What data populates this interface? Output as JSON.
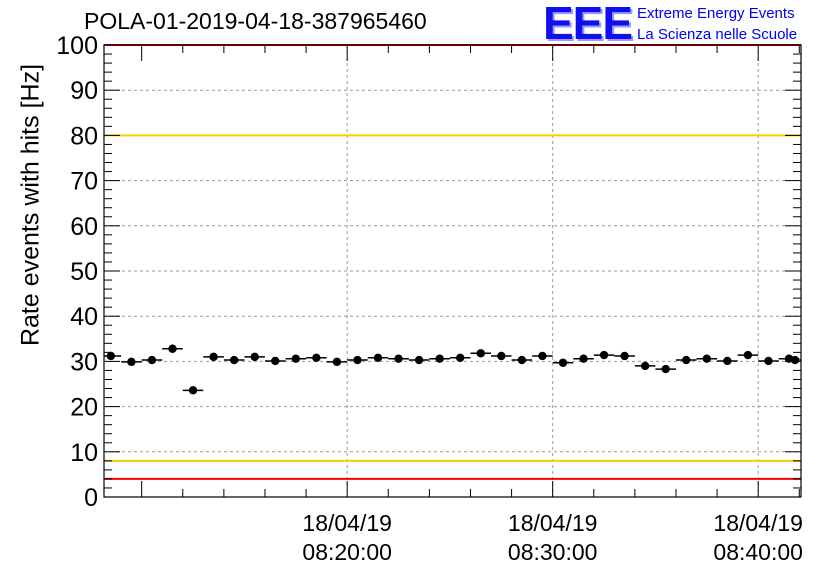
{
  "header": {
    "title": "POLA-01-2019-04-18-387965460",
    "logo_letters": "EEE",
    "logo_line1": "Extreme Energy Events",
    "logo_line2": "La Scienza nelle Scuole"
  },
  "chart_data": {
    "type": "scatter",
    "title": "POLA-01-2019-04-18-387965460",
    "ylabel": "Rate events with hits [Hz]",
    "xlabel": "",
    "ylim": [
      0,
      100
    ],
    "yticks": [
      0,
      10,
      20,
      30,
      40,
      50,
      60,
      70,
      80,
      90,
      100
    ],
    "xlim": [
      "18/04/19 08:08:10",
      "18/04/19 08:42:05"
    ],
    "xticks": [
      {
        "x": "18/04/19 08:20:00",
        "date": "18/04/19",
        "time": "08:20:00"
      },
      {
        "x": "18/04/19 08:30:00",
        "date": "18/04/19",
        "time": "08:30:00"
      },
      {
        "x": "18/04/19 08:40:00",
        "date": "18/04/19",
        "time": "08:40:00"
      }
    ],
    "grid": true,
    "reference_lines": [
      {
        "y": 100,
        "color": "#ff0000"
      },
      {
        "y": 80,
        "color": "#ffcc00"
      },
      {
        "y": 8,
        "color": "#ffcc00"
      },
      {
        "y": 4,
        "color": "#ff0000"
      }
    ],
    "bin_width_seconds": 60,
    "series": [
      {
        "color": "#000000",
        "x": [
          "08:08:30",
          "08:09:30",
          "08:10:30",
          "08:11:30",
          "08:12:30",
          "08:13:30",
          "08:14:30",
          "08:15:30",
          "08:16:30",
          "08:17:30",
          "08:18:30",
          "08:19:30",
          "08:20:30",
          "08:21:30",
          "08:22:30",
          "08:23:30",
          "08:24:30",
          "08:25:30",
          "08:26:30",
          "08:27:30",
          "08:28:30",
          "08:29:30",
          "08:30:30",
          "08:31:30",
          "08:32:30",
          "08:33:30",
          "08:34:30",
          "08:35:30",
          "08:36:30",
          "08:37:30",
          "08:38:30",
          "08:39:30",
          "08:40:30",
          "08:41:30",
          "08:42:30"
        ],
        "y": [
          31.2,
          29.9,
          30.3,
          32.8,
          23.6,
          31.0,
          30.3,
          31.0,
          30.1,
          30.6,
          30.8,
          29.9,
          30.3,
          30.8,
          30.6,
          30.3,
          30.6,
          30.8,
          31.8,
          31.2,
          30.3,
          31.2,
          29.7,
          30.6,
          31.4,
          31.2,
          29.0,
          28.3,
          30.3,
          30.6,
          30.1,
          31.4,
          30.1,
          30.6,
          30.3
        ]
      }
    ]
  }
}
